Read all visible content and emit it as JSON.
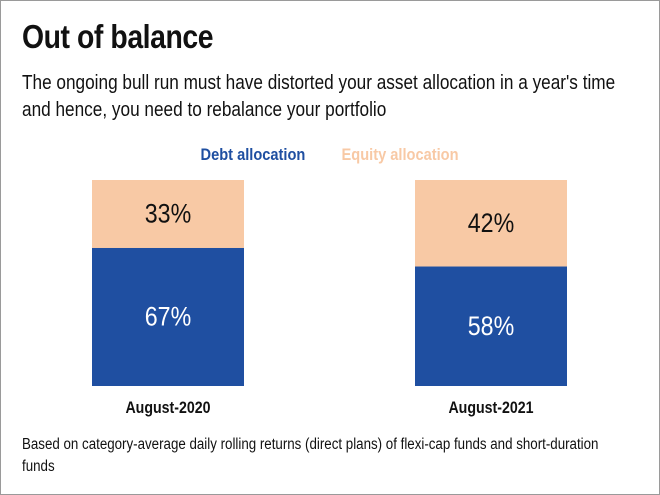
{
  "title": "Out of balance",
  "subtitle": "The ongoing bull run must have distorted your asset allocation in a year's time and hence, you need to rebalance your portfolio",
  "footnote": "Based on category-average daily rolling returns (direct plans) of flexi-cap funds and short-duration funds",
  "colors": {
    "debt": "#1f4fa1",
    "equity": "#f8c9a5",
    "debt_text": "#ffffff",
    "equity_text": "#111111"
  },
  "chart_data": {
    "type": "bar",
    "stacked": true,
    "normalized": "percent",
    "categories": [
      "August-2020",
      "August-2021"
    ],
    "series": [
      {
        "name": "Debt allocation",
        "values": [
          67,
          58
        ],
        "labels": [
          "67%",
          "58%"
        ],
        "color": "#1f4fa1"
      },
      {
        "name": "Equity allocation",
        "values": [
          33,
          42
        ],
        "labels": [
          "33%",
          "42%"
        ],
        "color": "#f8c9a5"
      }
    ],
    "ylim": [
      0,
      100
    ],
    "legend": "top-center",
    "grid": false
  }
}
